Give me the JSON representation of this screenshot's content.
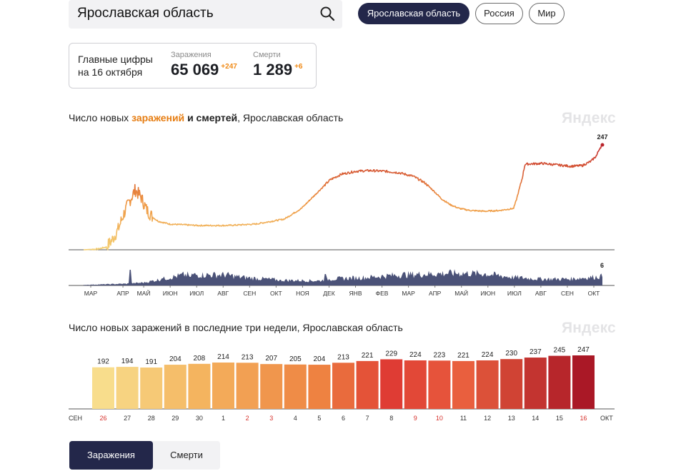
{
  "search": {
    "value": "Ярославская область"
  },
  "regions": {
    "region": "Ярославская область",
    "russia": "Россия",
    "world": "Мир"
  },
  "stats": {
    "title_line1": "Главные цифры",
    "title_line2": "на 16 октября",
    "infections_label": "Заражения",
    "infections_value": "65 069",
    "infections_delta": "+247",
    "deaths_label": "Смерти",
    "deaths_value": "1 289",
    "deaths_delta": "+6"
  },
  "main_chart": {
    "title_prefix": "Число новых",
    "title_hl": "заражений",
    "title_bold": "и смертей",
    "title_suffix": ", Ярославская область",
    "brand": "Яндекс"
  },
  "bar_chart_heading": {
    "title": "Число новых заражений в последние три недели, Ярославская область",
    "brand": "Яндекс",
    "left_month": "СЕН",
    "right_month": "ОКТ"
  },
  "tabs": {
    "infections": "Заражения",
    "deaths": "Смерти"
  },
  "colors": {
    "accent": "#e67d12",
    "dark": "#23274a",
    "deaths_area": "#4b5278",
    "weekend": "#d6302b"
  },
  "chart_data": [
    {
      "type": "line",
      "title": "Число новых заражений и смертей, Ярославская область",
      "series_name": "Заражения",
      "month_ticks": [
        "МАР",
        "АПР",
        "МАЙ",
        "ИЮН",
        "ИЮЛ",
        "АВГ",
        "СЕН",
        "ОКТ",
        "НОЯ",
        "ДЕК",
        "ЯНВ",
        "ФЕВ",
        "МАР",
        "АПР",
        "МАЙ",
        "ИЮН",
        "ИЮЛ",
        "АВГ",
        "СЕН",
        "ОКТ"
      ],
      "points": [
        [
          0,
          0
        ],
        [
          5,
          1
        ],
        [
          8,
          4
        ],
        [
          10,
          14
        ],
        [
          12,
          28
        ],
        [
          14,
          50
        ],
        [
          16,
          68
        ],
        [
          18,
          84
        ],
        [
          20,
          74
        ],
        [
          22,
          56
        ],
        [
          24,
          46
        ],
        [
          26,
          40
        ],
        [
          30,
          36
        ],
        [
          40,
          34
        ],
        [
          50,
          34
        ],
        [
          60,
          36
        ],
        [
          70,
          43
        ],
        [
          76,
          58
        ],
        [
          82,
          82
        ],
        [
          86,
          98
        ],
        [
          90,
          106
        ],
        [
          95,
          110
        ],
        [
          100,
          111
        ],
        [
          105,
          110
        ],
        [
          110,
          108
        ],
        [
          115,
          103
        ],
        [
          119,
          94
        ],
        [
          122,
          83
        ],
        [
          125,
          71
        ],
        [
          128,
          63
        ],
        [
          131,
          58
        ],
        [
          135,
          55
        ],
        [
          140,
          54
        ],
        [
          145,
          55
        ],
        [
          150,
          58
        ],
        [
          151,
          70
        ],
        [
          153,
          100
        ],
        [
          154,
          120
        ],
        [
          160,
          121
        ],
        [
          165,
          119
        ],
        [
          170,
          117
        ],
        [
          174,
          118
        ],
        [
          177,
          124
        ],
        [
          179,
          132
        ],
        [
          180,
          142
        ],
        [
          181,
          147
        ]
      ],
      "last_value_label": "247",
      "deaths_series_name": "Смерти",
      "deaths_last_value_label": "6"
    },
    {
      "type": "bar",
      "title": "Число новых заражений в последние три недели, Ярославская область",
      "categories": [
        "26",
        "27",
        "28",
        "29",
        "30",
        "1",
        "2",
        "3",
        "4",
        "5",
        "6",
        "7",
        "8",
        "9",
        "10",
        "11",
        "12",
        "13",
        "14",
        "15",
        "16"
      ],
      "values": [
        192,
        194,
        191,
        204,
        208,
        214,
        213,
        207,
        205,
        204,
        213,
        221,
        229,
        224,
        223,
        221,
        224,
        230,
        237,
        245,
        247
      ],
      "weekend_days": [
        "26",
        "2",
        "3",
        "9",
        "10",
        "16"
      ]
    }
  ]
}
